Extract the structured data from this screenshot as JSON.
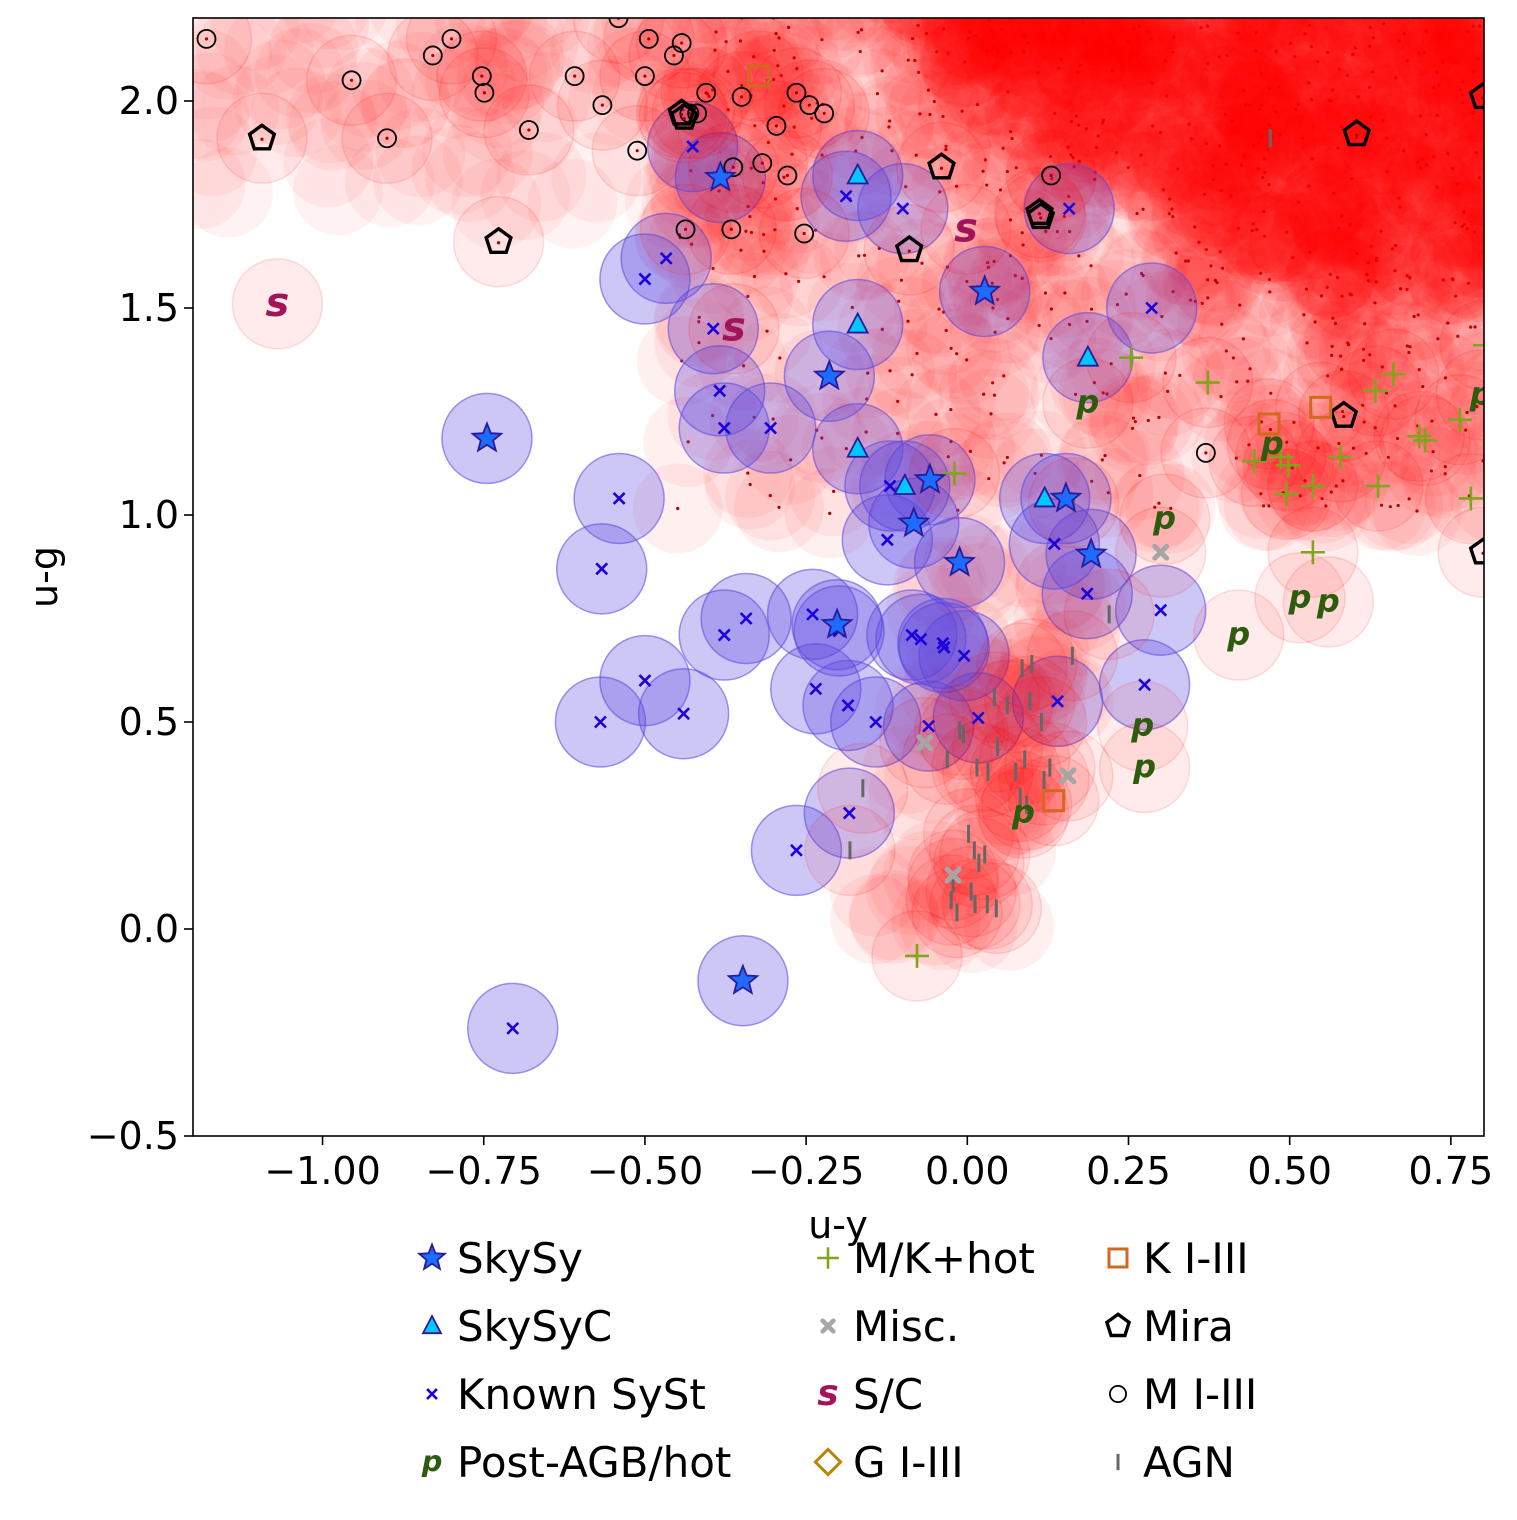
{
  "chart_data": {
    "type": "scatter",
    "title": "",
    "xlabel": "u-y",
    "ylabel": "u-g",
    "xlim": [
      -1.2,
      0.8
    ],
    "ylim": [
      -0.5,
      2.2
    ],
    "xticks": [
      -1.0,
      -0.75,
      -0.5,
      -0.25,
      0.0,
      0.25,
      0.5,
      0.75
    ],
    "xtick_labels": [
      "−1.00",
      "−0.75",
      "−0.50",
      "−0.25",
      "0.00",
      "0.25",
      "0.50",
      "0.75"
    ],
    "yticks": [
      -0.5,
      0.0,
      0.5,
      1.0,
      1.5,
      2.0
    ],
    "ytick_labels": [
      "−0.5",
      "0.0",
      "0.5",
      "1.0",
      "1.5",
      "2.0"
    ],
    "colors": {
      "sysst_circle": "#5a46e0",
      "background_circle": "#ff0000",
      "sysst_marker": "#1f3cff",
      "known_marker": "#1a00dd",
      "mk_hot": "#7fa51c",
      "misc": "#a6a6a6",
      "s_c": "#a3135a",
      "post_agb": "#2d5c0c",
      "g_class": "#b8860b",
      "k_class": "#d2691e",
      "mira": "#000000",
      "m_class": "#000000",
      "agn": "#666666",
      "red_dot": "#b00000"
    },
    "series": [
      {
        "name": "SkySy",
        "marker": "star",
        "points": [
          [
            -0.745,
            1.185
          ],
          [
            -0.383,
            1.815
          ],
          [
            -0.214,
            1.335
          ],
          [
            -0.202,
            0.735
          ],
          [
            -0.058,
            1.085
          ],
          [
            -0.083,
            0.98
          ],
          [
            -0.012,
            0.885
          ],
          [
            0.027,
            1.54
          ],
          [
            0.153,
            1.04
          ],
          [
            0.192,
            0.905
          ],
          [
            -0.348,
            -0.125
          ]
        ]
      },
      {
        "name": "SkySyC",
        "marker": "triangle",
        "points": [
          [
            -0.17,
            1.82
          ],
          [
            -0.17,
            1.46
          ],
          [
            -0.17,
            1.16
          ],
          [
            -0.097,
            1.07
          ],
          [
            0.12,
            1.04
          ],
          [
            0.187,
            1.38
          ]
        ]
      },
      {
        "name": "Known SySt",
        "marker": "x",
        "points": [
          [
            -0.705,
            -0.24
          ],
          [
            -0.569,
            0.5
          ],
          [
            -0.567,
            0.87
          ],
          [
            -0.54,
            1.04
          ],
          [
            -0.5,
            0.6
          ],
          [
            -0.5,
            1.57
          ],
          [
            -0.467,
            1.62
          ],
          [
            -0.44,
            0.52
          ],
          [
            -0.426,
            1.89
          ],
          [
            -0.394,
            1.45
          ],
          [
            -0.384,
            1.3
          ],
          [
            -0.377,
            1.21
          ],
          [
            -0.377,
            0.71
          ],
          [
            -0.343,
            0.75
          ],
          [
            -0.305,
            1.21
          ],
          [
            -0.265,
            0.19
          ],
          [
            -0.24,
            0.76
          ],
          [
            -0.235,
            0.58
          ],
          [
            -0.199,
            0.72
          ],
          [
            -0.188,
            1.77
          ],
          [
            -0.185,
            0.54
          ],
          [
            -0.183,
            0.28
          ],
          [
            -0.142,
            0.5
          ],
          [
            -0.124,
            0.94
          ],
          [
            -0.12,
            1.07
          ],
          [
            -0.1,
            1.74
          ],
          [
            -0.086,
            0.71
          ],
          [
            -0.072,
            0.7
          ],
          [
            -0.06,
            0.49
          ],
          [
            -0.038,
            0.69
          ],
          [
            -0.036,
            0.68
          ],
          [
            -0.005,
            0.66
          ],
          [
            0.017,
            0.51
          ],
          [
            0.135,
            0.93
          ],
          [
            0.14,
            0.55
          ],
          [
            0.158,
            1.74
          ],
          [
            0.186,
            0.81
          ],
          [
            0.275,
            0.59
          ],
          [
            0.286,
            1.5
          ],
          [
            0.3,
            0.77
          ]
        ]
      },
      {
        "name": "Post-AGB/hot",
        "marker": "p",
        "points": [
          [
            0.187,
            1.27
          ],
          [
            0.306,
            0.99
          ],
          [
            0.473,
            1.17
          ],
          [
            0.421,
            0.71
          ],
          [
            0.516,
            0.8
          ],
          [
            0.56,
            0.79
          ],
          [
            0.272,
            0.49
          ],
          [
            0.275,
            0.39
          ],
          [
            0.087,
            0.28
          ],
          [
            0.797,
            1.29
          ]
        ]
      },
      {
        "name": "M/K+hot",
        "marker": "plus",
        "points": [
          [
            -0.078,
            -0.065
          ],
          [
            -0.02,
            1.1
          ],
          [
            0.254,
            1.38
          ],
          [
            0.373,
            1.32
          ],
          [
            0.445,
            1.13
          ],
          [
            0.486,
            1.14
          ],
          [
            0.495,
            1.05
          ],
          [
            0.498,
            1.12
          ],
          [
            0.536,
            1.07
          ],
          [
            0.536,
            0.91
          ],
          [
            0.579,
            1.14
          ],
          [
            0.637,
            1.07
          ],
          [
            0.633,
            1.3
          ],
          [
            0.661,
            1.34
          ],
          [
            0.701,
            1.19
          ],
          [
            0.71,
            1.18
          ],
          [
            0.764,
            1.23
          ],
          [
            0.781,
            1.04
          ],
          [
            0.803,
            1.41
          ]
        ]
      },
      {
        "name": "Misc.",
        "marker": "cross",
        "points": [
          [
            -0.066,
            0.45
          ],
          [
            -0.022,
            0.13
          ],
          [
            0.156,
            0.37
          ],
          [
            0.3,
            0.91
          ]
        ]
      },
      {
        "name": "S/C",
        "marker": "s",
        "points": [
          [
            -1.07,
            1.51
          ],
          [
            -0.362,
            1.45
          ],
          [
            -0.002,
            1.69
          ]
        ]
      },
      {
        "name": "G I-III",
        "marker": "diamond",
        "points": []
      },
      {
        "name": "K I-III",
        "marker": "square",
        "points": [
          [
            -0.324,
            2.06
          ],
          [
            0.134,
            0.31
          ],
          [
            0.468,
            1.22
          ],
          [
            0.548,
            1.26
          ]
        ]
      },
      {
        "name": "Mira",
        "marker": "pentagon",
        "points": [
          [
            -1.094,
            1.91
          ],
          [
            -0.727,
            1.66
          ],
          [
            -0.443,
            1.97
          ],
          [
            -0.439,
            1.96
          ],
          [
            -0.09,
            1.64
          ],
          [
            -0.04,
            1.84
          ],
          [
            0.112,
            1.73
          ],
          [
            0.114,
            1.72
          ],
          [
            0.584,
            1.24
          ],
          [
            0.604,
            1.92
          ],
          [
            0.8,
            2.01
          ],
          [
            0.8,
            0.91
          ]
        ]
      },
      {
        "name": "M I-III",
        "marker": "circle",
        "points": [
          [
            -1.18,
            2.15
          ],
          [
            -0.955,
            2.05
          ],
          [
            -0.9,
            1.91
          ],
          [
            -0.829,
            2.11
          ],
          [
            -0.8,
            2.15
          ],
          [
            -0.753,
            2.06
          ],
          [
            -0.749,
            2.02
          ],
          [
            -0.68,
            1.93
          ],
          [
            -0.609,
            2.06
          ],
          [
            -0.566,
            1.99
          ],
          [
            -0.541,
            2.2
          ],
          [
            -0.512,
            1.88
          ],
          [
            -0.5,
            2.06
          ],
          [
            -0.494,
            2.15
          ],
          [
            -0.455,
            2.11
          ],
          [
            -0.443,
            2.14
          ],
          [
            -0.431,
            1.97
          ],
          [
            -0.419,
            1.97
          ],
          [
            -0.405,
            2.02
          ],
          [
            -0.437,
            1.69
          ],
          [
            -0.363,
            1.84
          ],
          [
            -0.366,
            1.69
          ],
          [
            -0.35,
            2.01
          ],
          [
            -0.318,
            1.85
          ],
          [
            -0.296,
            1.94
          ],
          [
            -0.279,
            1.82
          ],
          [
            -0.265,
            2.02
          ],
          [
            -0.245,
            1.99
          ],
          [
            -0.253,
            1.68
          ],
          [
            -0.222,
            1.97
          ],
          [
            0.13,
            1.82
          ],
          [
            0.37,
            1.15
          ]
        ]
      },
      {
        "name": "AGN",
        "marker": "tick",
        "points": [
          [
            0.47,
            1.91
          ],
          [
            0.165,
            1.03
          ],
          [
            0.22,
            0.76
          ],
          [
            0.163,
            0.66
          ],
          [
            0.085,
            0.63
          ],
          [
            0.1,
            0.64
          ],
          [
            0.042,
            0.56
          ],
          [
            0.097,
            0.55
          ],
          [
            0.062,
            0.54
          ],
          [
            0.115,
            0.5
          ],
          [
            -0.012,
            0.48
          ],
          [
            -0.006,
            0.47
          ],
          [
            0.047,
            0.44
          ],
          [
            0.089,
            0.41
          ],
          [
            0.128,
            0.39
          ],
          [
            -0.031,
            0.41
          ],
          [
            0.015,
            0.39
          ],
          [
            0.032,
            0.38
          ],
          [
            0.075,
            0.38
          ],
          [
            0.119,
            0.36
          ],
          [
            0.092,
            0.3
          ],
          [
            0.082,
            0.32
          ],
          [
            -0.162,
            0.34
          ],
          [
            -0.182,
            0.19
          ],
          [
            0.002,
            0.23
          ],
          [
            0.011,
            0.19
          ],
          [
            0.018,
            0.16
          ],
          [
            0.027,
            0.18
          ],
          [
            -0.022,
            0.11
          ],
          [
            0.006,
            0.09
          ],
          [
            -0.025,
            0.07
          ],
          [
            0.012,
            0.06
          ],
          [
            0.031,
            0.06
          ],
          [
            -0.016,
            0.04
          ],
          [
            0.045,
            0.05
          ]
        ]
      }
    ],
    "legend": {
      "placement": "bottom-center",
      "columns": [
        [
          "SkySy",
          "SkySyC",
          "Known SySt",
          "Post-AGB/hot"
        ],
        [
          "M/K+hot",
          "Misc.",
          "S/C",
          "G I-III"
        ],
        [
          "K I-III",
          "Mira",
          "M I-III",
          "AGN"
        ]
      ]
    },
    "grid": false
  }
}
